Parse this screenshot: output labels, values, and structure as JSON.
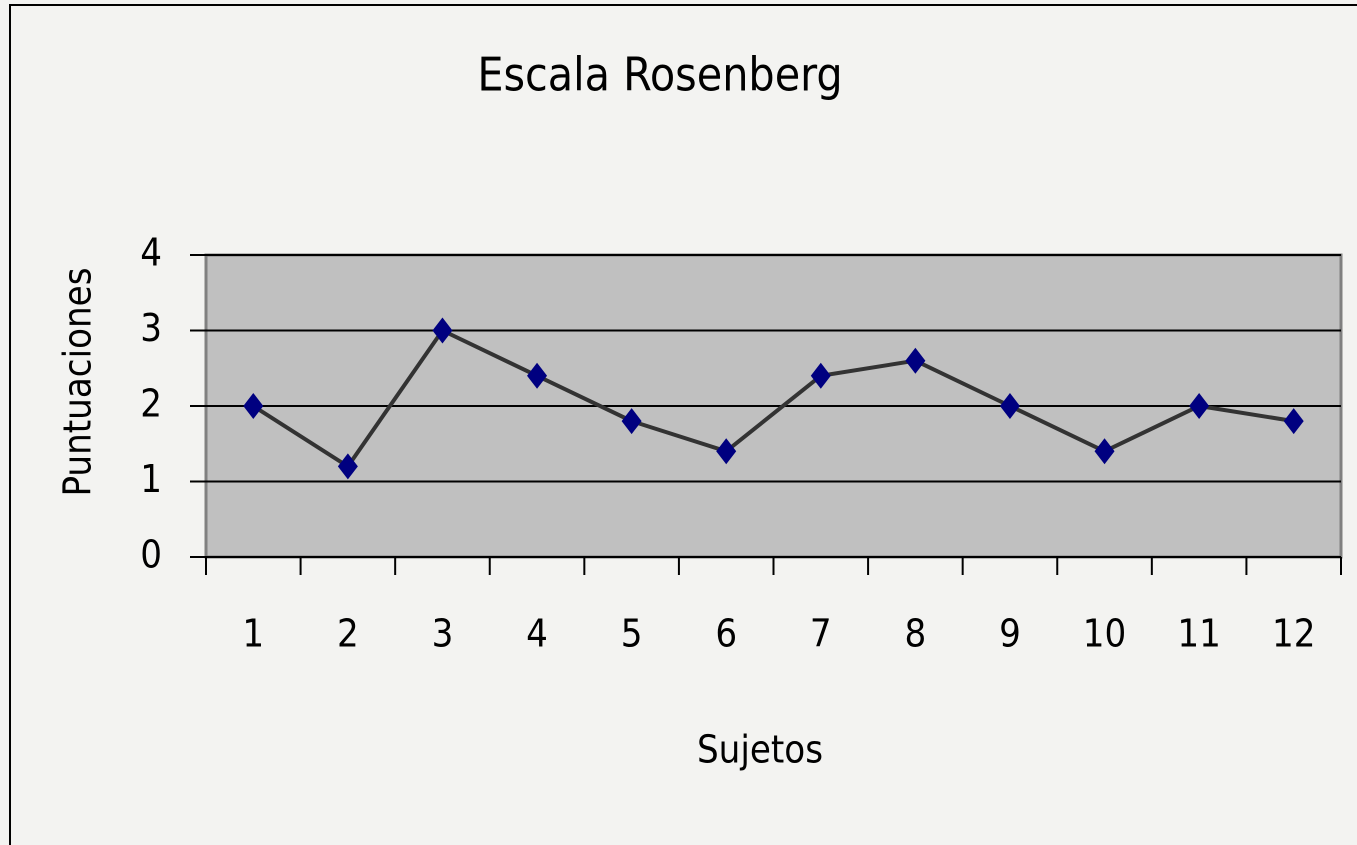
{
  "chart_data": {
    "type": "line",
    "title": "Escala Rosenberg",
    "x_label": "Sujetos",
    "y_label": "Puntuaciones",
    "categories": [
      "1",
      "2",
      "3",
      "4",
      "5",
      "6",
      "7",
      "8",
      "9",
      "10",
      "11",
      "12"
    ],
    "values": [
      2,
      1.2,
      3,
      2.4,
      1.8,
      1.4,
      2.4,
      2.6,
      2,
      1.4,
      2,
      1.8
    ],
    "line_color": "#333333",
    "marker_color": "#000080",
    "marker": "diamond",
    "ylim": [
      0,
      4
    ],
    "yticks": [
      0,
      1,
      2,
      3,
      4
    ],
    "grid": true
  }
}
